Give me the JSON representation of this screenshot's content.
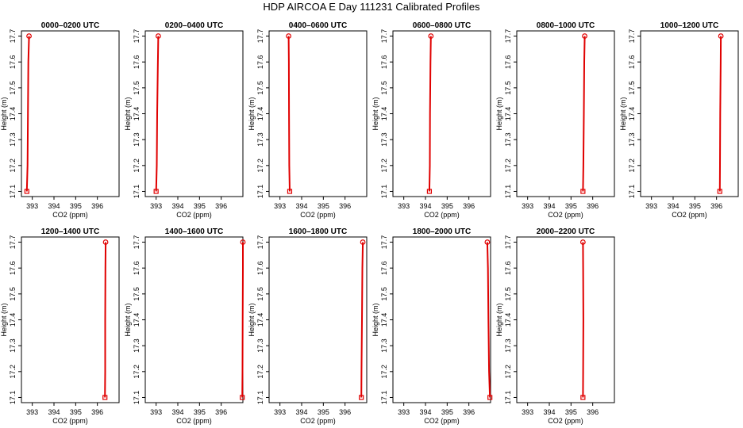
{
  "page": {
    "title": "HDP AIRCOA E  Day 111231  Calibrated Profiles"
  },
  "colors": {
    "profile_line": "#e00000",
    "marker": "#e00000",
    "axis": "#000000"
  },
  "chart_data": [
    {
      "type": "line",
      "title": "0000–0200 UTC",
      "xlabel": "CO2 (ppm)",
      "ylabel": "Height (m)",
      "xlim": [
        392.5,
        397.0
      ],
      "ylim": [
        17.08,
        17.72
      ],
      "xticks": [
        "393",
        "394",
        "395",
        "396"
      ],
      "yticks": [
        "17.1",
        "17.2",
        "17.3",
        "17.4",
        "17.5",
        "17.6",
        "17.7"
      ],
      "series": [
        {
          "x": [
            392.75,
            392.78,
            392.8,
            392.82,
            392.85
          ],
          "y": [
            17.1,
            17.2,
            17.4,
            17.6,
            17.7
          ]
        }
      ]
    },
    {
      "type": "line",
      "title": "0200–0400 UTC",
      "xlabel": "CO2 (ppm)",
      "ylabel": "Height (m)",
      "xlim": [
        392.5,
        397.0
      ],
      "ylim": [
        17.08,
        17.72
      ],
      "xticks": [
        "393",
        "394",
        "395",
        "396"
      ],
      "yticks": [
        "17.1",
        "17.2",
        "17.3",
        "17.4",
        "17.5",
        "17.6",
        "17.7"
      ],
      "series": [
        {
          "x": [
            393.0,
            393.03,
            393.05,
            393.08,
            393.1
          ],
          "y": [
            17.1,
            17.2,
            17.4,
            17.6,
            17.7
          ]
        }
      ]
    },
    {
      "type": "line",
      "title": "0400–0600 UTC",
      "xlabel": "CO2 (ppm)",
      "ylabel": "Height (m)",
      "xlim": [
        392.5,
        397.0
      ],
      "ylim": [
        17.08,
        17.72
      ],
      "xticks": [
        "393",
        "394",
        "395",
        "396"
      ],
      "yticks": [
        "17.1",
        "17.2",
        "17.3",
        "17.4",
        "17.5",
        "17.6",
        "17.7"
      ],
      "series": [
        {
          "x": [
            393.45,
            393.43,
            393.42,
            393.41,
            393.4
          ],
          "y": [
            17.1,
            17.2,
            17.4,
            17.6,
            17.7
          ]
        }
      ]
    },
    {
      "type": "line",
      "title": "0600–0800 UTC",
      "xlabel": "CO2 (ppm)",
      "ylabel": "Height (m)",
      "xlim": [
        392.5,
        397.0
      ],
      "ylim": [
        17.08,
        17.72
      ],
      "xticks": [
        "393",
        "394",
        "395",
        "396"
      ],
      "yticks": [
        "17.1",
        "17.2",
        "17.3",
        "17.4",
        "17.5",
        "17.6",
        "17.7"
      ],
      "series": [
        {
          "x": [
            394.18,
            394.2,
            394.21,
            394.23,
            394.25
          ],
          "y": [
            17.1,
            17.2,
            17.4,
            17.6,
            17.7
          ]
        }
      ]
    },
    {
      "type": "line",
      "title": "0800–1000 UTC",
      "xlabel": "CO2 (ppm)",
      "ylabel": "Height (m)",
      "xlim": [
        392.5,
        397.0
      ],
      "ylim": [
        17.08,
        17.72
      ],
      "xticks": [
        "393",
        "394",
        "395",
        "396"
      ],
      "yticks": [
        "17.1",
        "17.2",
        "17.3",
        "17.4",
        "17.5",
        "17.6",
        "17.7"
      ],
      "series": [
        {
          "x": [
            395.55,
            395.57,
            395.59,
            395.61,
            395.63
          ],
          "y": [
            17.1,
            17.2,
            17.4,
            17.6,
            17.7
          ]
        }
      ]
    },
    {
      "type": "line",
      "title": "1000–1200 UTC",
      "xlabel": "CO2 (ppm)",
      "ylabel": "Height (m)",
      "xlim": [
        392.5,
        397.0
      ],
      "ylim": [
        17.08,
        17.72
      ],
      "xticks": [
        "393",
        "394",
        "395",
        "396"
      ],
      "yticks": [
        "17.1",
        "17.2",
        "17.3",
        "17.4",
        "17.5",
        "17.6",
        "17.7"
      ],
      "series": [
        {
          "x": [
            396.15,
            396.16,
            396.17,
            396.19,
            396.2
          ],
          "y": [
            17.1,
            17.2,
            17.4,
            17.6,
            17.7
          ]
        }
      ]
    },
    {
      "type": "line",
      "title": "1200–1400 UTC",
      "xlabel": "CO2 (ppm)",
      "ylabel": "Height (m)",
      "xlim": [
        392.5,
        397.0
      ],
      "ylim": [
        17.08,
        17.72
      ],
      "xticks": [
        "393",
        "394",
        "395",
        "396"
      ],
      "yticks": [
        "17.1",
        "17.2",
        "17.3",
        "17.4",
        "17.5",
        "17.6",
        "17.7"
      ],
      "series": [
        {
          "x": [
            396.35,
            396.36,
            396.36,
            396.37,
            396.38
          ],
          "y": [
            17.1,
            17.2,
            17.4,
            17.6,
            17.7
          ]
        }
      ]
    },
    {
      "type": "line",
      "title": "1400–1600 UTC",
      "xlabel": "CO2 (ppm)",
      "ylabel": "Height (m)",
      "xlim": [
        392.5,
        397.0
      ],
      "ylim": [
        17.08,
        17.72
      ],
      "xticks": [
        "393",
        "394",
        "395",
        "396"
      ],
      "yticks": [
        "17.1",
        "17.2",
        "17.3",
        "17.4",
        "17.5",
        "17.6",
        "17.7"
      ],
      "series": [
        {
          "x": [
            396.97,
            396.98,
            396.99,
            397.0,
            397.0
          ],
          "y": [
            17.1,
            17.2,
            17.4,
            17.6,
            17.7
          ]
        }
      ]
    },
    {
      "type": "line",
      "title": "1600–1800 UTC",
      "xlabel": "CO2 (ppm)",
      "ylabel": "Height (m)",
      "xlim": [
        392.5,
        397.0
      ],
      "ylim": [
        17.08,
        17.72
      ],
      "xticks": [
        "393",
        "394",
        "395",
        "396"
      ],
      "yticks": [
        "17.1",
        "17.2",
        "17.3",
        "17.4",
        "17.5",
        "17.6",
        "17.7"
      ],
      "series": [
        {
          "x": [
            396.75,
            396.76,
            396.78,
            396.8,
            396.82
          ],
          "y": [
            17.1,
            17.2,
            17.4,
            17.6,
            17.7
          ]
        }
      ]
    },
    {
      "type": "line",
      "title": "1800–2000 UTC",
      "xlabel": "CO2 (ppm)",
      "ylabel": "Height (m)",
      "xlim": [
        392.5,
        397.0
      ],
      "ylim": [
        17.08,
        17.72
      ],
      "xticks": [
        "393",
        "394",
        "395",
        "396"
      ],
      "yticks": [
        "17.1",
        "17.2",
        "17.3",
        "17.4",
        "17.5",
        "17.6",
        "17.7"
      ],
      "series": [
        {
          "x": [
            396.97,
            396.93,
            396.9,
            396.88,
            396.85
          ],
          "y": [
            17.1,
            17.2,
            17.4,
            17.6,
            17.7
          ]
        }
      ]
    },
    {
      "type": "line",
      "title": "2000–2200 UTC",
      "xlabel": "CO2 (ppm)",
      "ylabel": "Height (m)",
      "xlim": [
        392.5,
        397.0
      ],
      "ylim": [
        17.08,
        17.72
      ],
      "xticks": [
        "393",
        "394",
        "395",
        "396"
      ],
      "yticks": [
        "17.1",
        "17.2",
        "17.3",
        "17.4",
        "17.5",
        "17.6",
        "17.7"
      ],
      "series": [
        {
          "x": [
            395.55,
            395.56,
            395.57,
            395.56,
            395.55
          ],
          "y": [
            17.1,
            17.2,
            17.4,
            17.6,
            17.7
          ]
        }
      ]
    }
  ]
}
